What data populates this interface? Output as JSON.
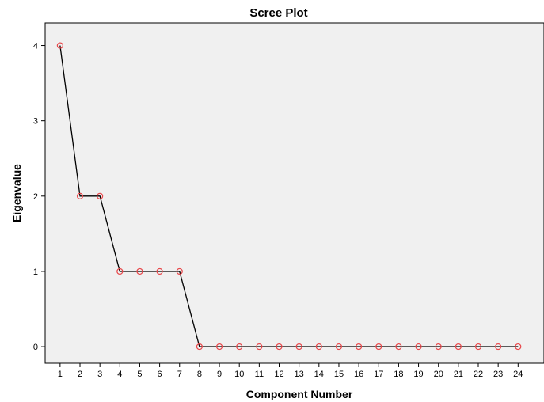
{
  "chart_data": {
    "type": "line",
    "title": "Scree Plot",
    "xlabel": "Component Number",
    "ylabel": "Eigenvalue",
    "x": [
      1,
      2,
      3,
      4,
      5,
      6,
      7,
      8,
      9,
      10,
      11,
      12,
      13,
      14,
      15,
      16,
      17,
      18,
      19,
      20,
      21,
      22,
      23,
      24
    ],
    "values": [
      4,
      2,
      2,
      1,
      1,
      1,
      1,
      0,
      0,
      0,
      0,
      0,
      0,
      0,
      0,
      0,
      0,
      0,
      0,
      0,
      0,
      0,
      0,
      0
    ],
    "xlim": [
      0.25,
      25.3
    ],
    "ylim": [
      -0.22,
      4.3
    ],
    "y_ticks": [
      0,
      1,
      2,
      3,
      4
    ],
    "grid": false,
    "colors": {
      "plot_background": "#f0f0f0",
      "line": "#000000",
      "marker": "#e8474a"
    }
  }
}
